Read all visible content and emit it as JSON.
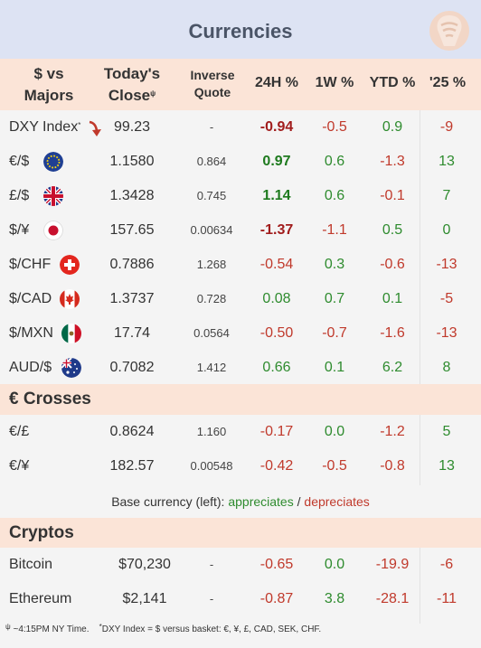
{
  "title": "Currencies",
  "header": {
    "col1_line1": "$ vs",
    "col1_line2": "Majors",
    "col2_line1": "Today's",
    "col2_line2": "Close",
    "col2_mark": "ψ",
    "col3_line1": "Inverse",
    "col3_line2": "Quote",
    "col4": "24H %",
    "col5": "1W %",
    "col6": "YTD %",
    "col7": "'25 %"
  },
  "majors": [
    {
      "name": "DXY Index",
      "mark": "*",
      "icon": "red-down-arrow-icon",
      "close": "99.23",
      "inverse": "-",
      "h24": "-0.94",
      "w1": "-0.5",
      "ytd": "0.9",
      "y25": "-9"
    },
    {
      "name": "€/$",
      "icon": "euro-flag-icon",
      "close": "1.1580",
      "inverse": "0.864",
      "h24": "0.97",
      "w1": "0.6",
      "ytd": "-1.3",
      "y25": "13"
    },
    {
      "name": "£/$",
      "icon": "uk-flag-icon",
      "close": "1.3428",
      "inverse": "0.745",
      "h24": "1.14",
      "w1": "0.6",
      "ytd": "-0.1",
      "y25": "7"
    },
    {
      "name": "$/¥",
      "icon": "japan-flag-icon",
      "close": "157.65",
      "inverse": "0.00634",
      "h24": "-1.37",
      "w1": "-1.1",
      "ytd": "0.5",
      "y25": "0"
    },
    {
      "name": "$/CHF",
      "icon": "swiss-flag-icon",
      "close": "0.7886",
      "inverse": "1.268",
      "h24": "-0.54",
      "w1": "0.3",
      "ytd": "-0.6",
      "y25": "-13"
    },
    {
      "name": "$/CAD",
      "icon": "canada-flag-icon",
      "close": "1.3737",
      "inverse": "0.728",
      "h24": "0.08",
      "w1": "0.7",
      "ytd": "0.1",
      "y25": "-5"
    },
    {
      "name": "$/MXN",
      "icon": "mexico-flag-icon",
      "close": "17.74",
      "inverse": "0.0564",
      "h24": "-0.50",
      "w1": "-0.7",
      "ytd": "-1.6",
      "y25": "-13"
    },
    {
      "name": "AUD/$",
      "icon": "australia-flag-icon",
      "close": "0.7082",
      "inverse": "1.412",
      "h24": "0.66",
      "w1": "0.1",
      "ytd": "6.2",
      "y25": "8"
    }
  ],
  "crosses_title": "€ Crosses",
  "crosses": [
    {
      "name": "€/£",
      "close": "0.8624",
      "inverse": "1.160",
      "h24": "-0.17",
      "w1": "0.0",
      "ytd": "-1.2",
      "y25": "5"
    },
    {
      "name": "€/¥",
      "close": "182.57",
      "inverse": "0.00548",
      "h24": "-0.42",
      "w1": "-0.5",
      "ytd": "-0.8",
      "y25": "13"
    }
  ],
  "legend": {
    "prefix": "Base currency (left):",
    "appreciates": "appreciates",
    "sep": "/",
    "depreciates": "depreciates"
  },
  "cryptos_title": "Cryptos",
  "cryptos": [
    {
      "name": "Bitcoin",
      "close": "$70,230",
      "inverse": "-",
      "h24": "-0.65",
      "w1": "0.0",
      "ytd": "-19.9",
      "y25": "-6"
    },
    {
      "name": "Ethereum",
      "close": "$2,141",
      "inverse": "-",
      "h24": "-0.87",
      "w1": "3.8",
      "ytd": "-28.1",
      "y25": "-11"
    }
  ],
  "footer": {
    "mark1": "ψ",
    "note1": "~4:15PM NY Time.",
    "mark2": "*",
    "note2": "DXY Index = $ versus basket: €, ¥, £, CAD, SEK, CHF."
  },
  "colors": {
    "positive": "#2e8b2e",
    "negative": "#c0392b",
    "header_bg": "#fbe4d7",
    "title_bg": "#dde3f3"
  }
}
